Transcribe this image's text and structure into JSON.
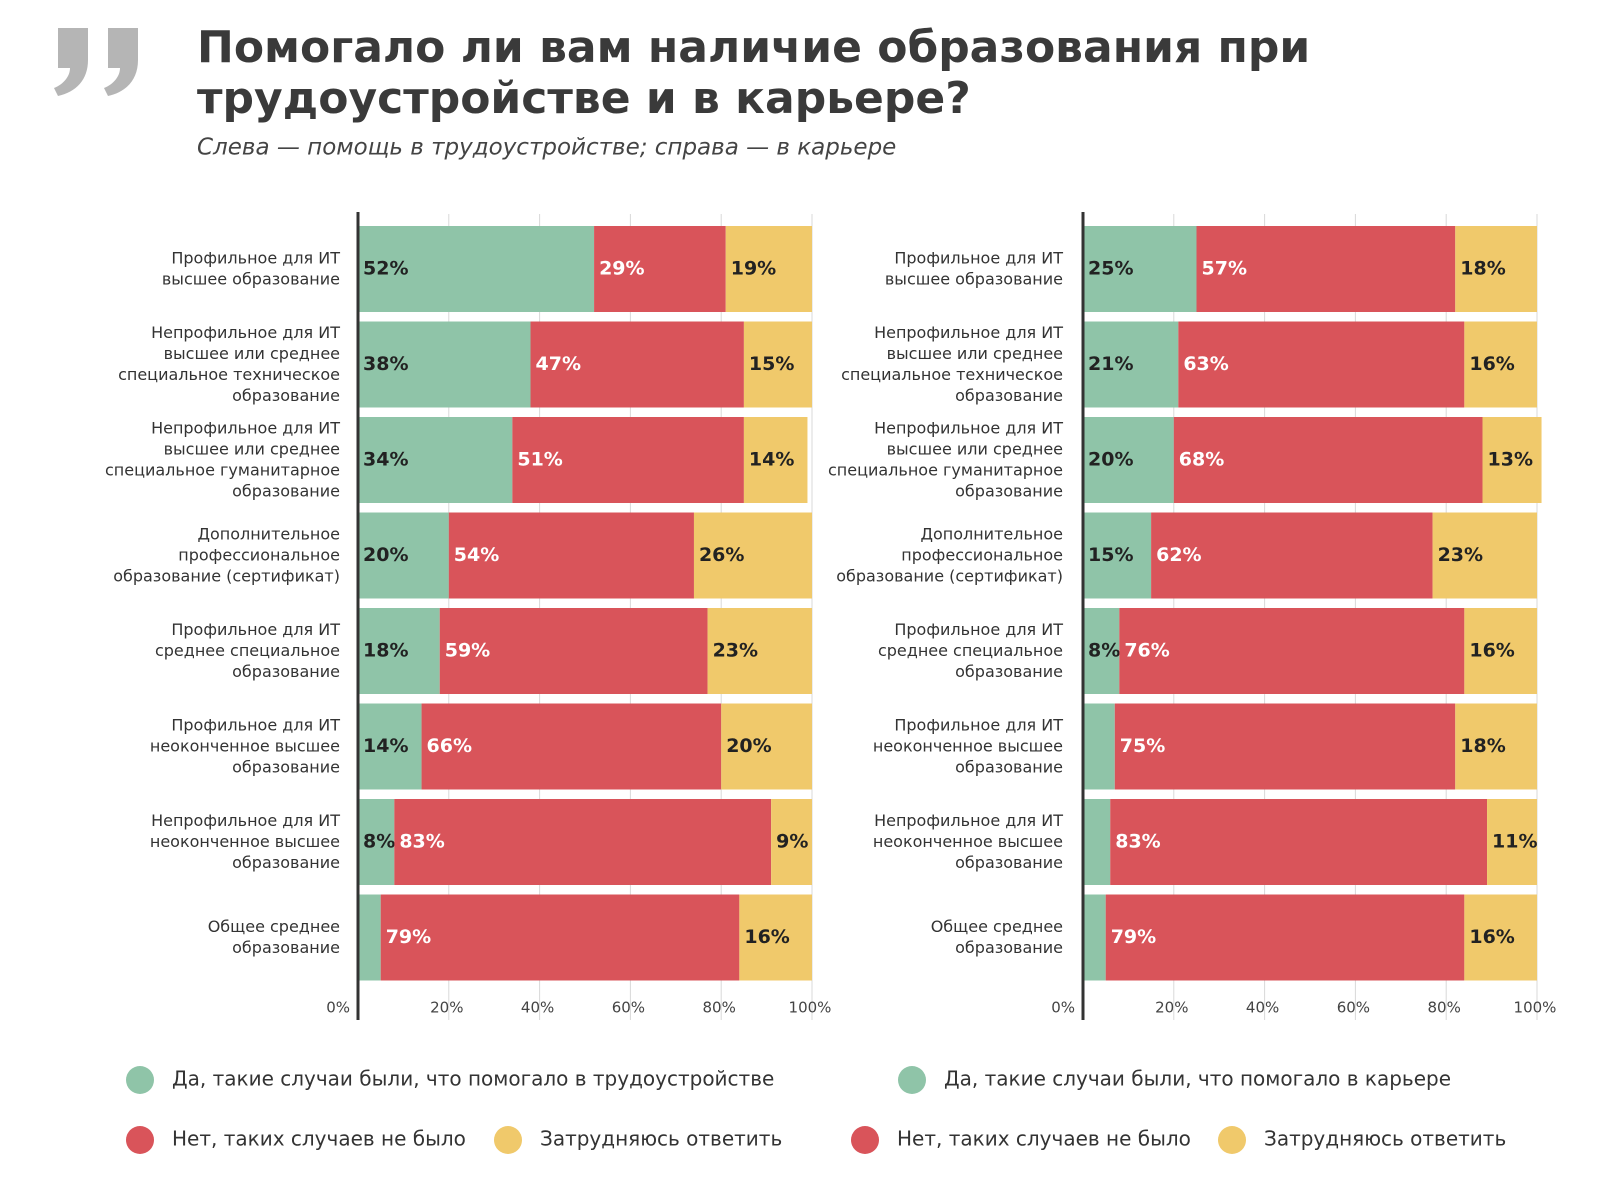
{
  "title": [
    "Помогало ли вам наличие образования при",
    "трудоустройстве и в карьере?"
  ],
  "subtitle": "Слева — помощь в трудоустройстве; справа — в карьере",
  "chart_data": [
    {
      "type": "bar",
      "orientation": "horizontal",
      "stacked": true,
      "grid": true,
      "categories": [
        [
          "Профильное для ИТ",
          "высшее образование"
        ],
        [
          "Непрофильное для ИТ",
          "высшее или среднее",
          "специальное техническое",
          "образование"
        ],
        [
          "Непрофильное для ИТ",
          "высшее или среднее",
          "специальное гуманитарное",
          "образование"
        ],
        [
          "Дополнительное",
          "профессиональное",
          "образование (сертификат)"
        ],
        [
          "Профильное для ИТ",
          "среднее специальное",
          "образование"
        ],
        [
          "Профильное для ИТ",
          "неоконченное высшее",
          "образование"
        ],
        [
          "Непрофильное для ИТ",
          "неоконченное высшее",
          "образование"
        ],
        [
          "Общее среднее",
          "образование"
        ]
      ],
      "series": [
        {
          "name": "Да, такие случаи были, что помогало в трудоустройстве",
          "color": "#8fc4a8",
          "values": [
            52,
            38,
            34,
            20,
            18,
            14,
            8,
            5
          ],
          "value_labels": [
            "52%",
            "38%",
            "34%",
            "20%",
            "18%",
            "14%",
            "8%",
            null
          ]
        },
        {
          "name": "Нет, таких случаев не было",
          "color": "#d9545a",
          "values": [
            29,
            47,
            51,
            54,
            59,
            66,
            83,
            79
          ],
          "value_labels": [
            "29%",
            "47%",
            "51%",
            "54%",
            "59%",
            "66%",
            "83%",
            "79%"
          ]
        },
        {
          "name": "Затрудняюсь ответить",
          "color": "#f0c96b",
          "values": [
            19,
            15,
            14,
            26,
            23,
            20,
            9,
            16
          ],
          "value_labels": [
            "19%",
            "15%",
            "14%",
            "26%",
            "23%",
            "20%",
            "9%",
            "16%"
          ]
        }
      ],
      "xlim": [
        0,
        100
      ],
      "xticks": [
        {
          "value": 0,
          "label": "0%"
        },
        {
          "value": 20,
          "label": "20%"
        },
        {
          "value": 40,
          "label": "40%"
        },
        {
          "value": 60,
          "label": "60%"
        },
        {
          "value": 80,
          "label": "80%"
        },
        {
          "value": 100,
          "label": "100%"
        }
      ]
    },
    {
      "type": "bar",
      "orientation": "horizontal",
      "stacked": true,
      "grid": true,
      "categories": [
        [
          "Профильное для ИТ",
          "высшее образование"
        ],
        [
          "Непрофильное для ИТ",
          "высшее или среднее",
          "специальное техническое",
          "образование"
        ],
        [
          "Непрофильное для ИТ",
          "высшее или среднее",
          "специальное гуманитарное",
          "образование"
        ],
        [
          "Дополнительное",
          "профессиональное",
          "образование (сертификат)"
        ],
        [
          "Профильное для ИТ",
          "среднее специальное",
          "образование"
        ],
        [
          "Профильное для ИТ",
          "неоконченное высшее",
          "образование"
        ],
        [
          "Непрофильное для ИТ",
          "неоконченное высшее",
          "образование"
        ],
        [
          "Общее среднее",
          "образование"
        ]
      ],
      "series": [
        {
          "name": "Да, такие случаи были, что помогало в карьере",
          "color": "#8fc4a8",
          "values": [
            25,
            21,
            20,
            15,
            8,
            7,
            6,
            5
          ],
          "value_labels": [
            "25%",
            "21%",
            "20%",
            "15%",
            "8%",
            null,
            null,
            null
          ]
        },
        {
          "name": "Нет, таких случаев не было",
          "color": "#d9545a",
          "values": [
            57,
            63,
            68,
            62,
            76,
            75,
            83,
            79
          ],
          "value_labels": [
            "57%",
            "63%",
            "68%",
            "62%",
            "76%",
            "75%",
            "83%",
            "79%"
          ]
        },
        {
          "name": "Затрудняюсь ответить",
          "color": "#f0c96b",
          "values": [
            18,
            16,
            13,
            23,
            16,
            18,
            11,
            16
          ],
          "value_labels": [
            "18%",
            "16%",
            "13%",
            "23%",
            "16%",
            "18%",
            "11%",
            "16%"
          ]
        }
      ],
      "xlim": [
        0,
        100
      ],
      "xticks": [
        {
          "value": 0,
          "label": "0%"
        },
        {
          "value": 20,
          "label": "20%"
        },
        {
          "value": 40,
          "label": "40%"
        },
        {
          "value": 60,
          "label": "60%"
        },
        {
          "value": 80,
          "label": "80%"
        },
        {
          "value": 100,
          "label": "100%"
        }
      ]
    }
  ]
}
